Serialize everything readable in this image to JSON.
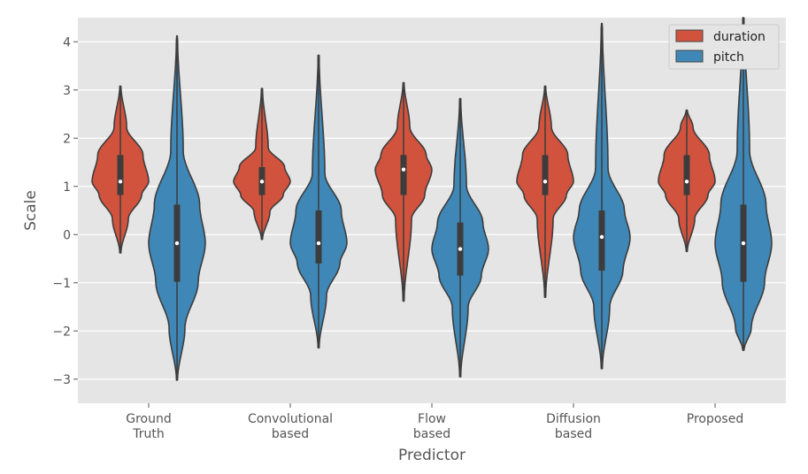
{
  "chart_data": {
    "type": "violin",
    "title": "",
    "xlabel": "Predictor",
    "ylabel": "Scale",
    "ylim": [
      -3.5,
      4.5
    ],
    "yticks": [
      4,
      3,
      2,
      1,
      0,
      -1,
      -2,
      -3
    ],
    "ytick_labels": [
      "4",
      "3",
      "2",
      "1",
      "0",
      "−1",
      "−2",
      "−3"
    ],
    "grid": true,
    "legend_position": "top-right",
    "categories": [
      {
        "lines": [
          "Ground",
          "Truth"
        ]
      },
      {
        "lines": [
          "Convolutional",
          "based"
        ]
      },
      {
        "lines": [
          "Flow",
          "based"
        ]
      },
      {
        "lines": [
          "Diffusion",
          "based"
        ]
      },
      {
        "lines": [
          "Proposed"
        ]
      }
    ],
    "series": [
      {
        "name": "duration",
        "color": "#D2533D",
        "stats": [
          {
            "min": -0.38,
            "q1": 0.82,
            "median": 1.1,
            "q3": 1.65,
            "max": 3.08
          },
          {
            "min": -0.1,
            "q1": 0.82,
            "median": 1.1,
            "q3": 1.4,
            "max": 3.03
          },
          {
            "min": -1.38,
            "q1": 0.82,
            "median": 1.35,
            "q3": 1.65,
            "max": 3.15
          },
          {
            "min": -1.3,
            "q1": 0.82,
            "median": 1.1,
            "q3": 1.65,
            "max": 3.08
          },
          {
            "min": -0.35,
            "q1": 0.82,
            "median": 1.1,
            "q3": 1.65,
            "max": 2.58
          }
        ]
      },
      {
        "name": "pitch",
        "color": "#3E87B7",
        "stats": [
          {
            "min": -3.02,
            "q1": -0.98,
            "median": -0.18,
            "q3": 0.62,
            "max": 4.12
          },
          {
            "min": -2.35,
            "q1": -0.6,
            "median": -0.18,
            "q3": 0.5,
            "max": 3.72
          },
          {
            "min": -2.95,
            "q1": -0.85,
            "median": -0.3,
            "q3": 0.25,
            "max": 2.82
          },
          {
            "min": -2.78,
            "q1": -0.75,
            "median": -0.05,
            "q3": 0.5,
            "max": 4.38
          },
          {
            "min": -2.4,
            "q1": -0.98,
            "median": -0.18,
            "q3": 0.62,
            "max": 4.5
          }
        ]
      }
    ]
  }
}
